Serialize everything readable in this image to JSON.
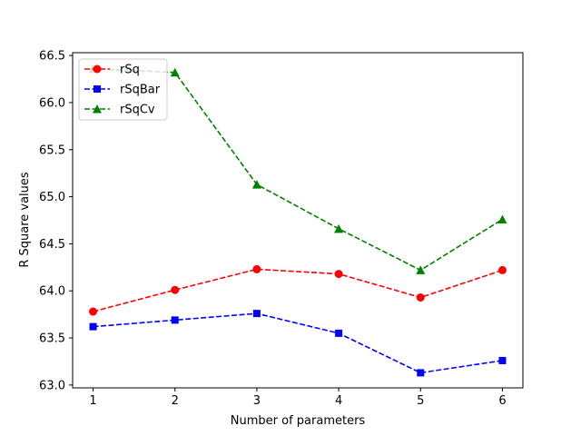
{
  "chart_data": {
    "type": "line",
    "title": "",
    "xlabel": "Number of parameters",
    "ylabel": "R Square values",
    "x": [
      1,
      2,
      3,
      4,
      5,
      6
    ],
    "xticks": [
      "1",
      "2",
      "3",
      "4",
      "5",
      "6"
    ],
    "yticks": [
      "63.0",
      "63.5",
      "64.0",
      "64.5",
      "65.0",
      "65.5",
      "66.0",
      "66.5"
    ],
    "xlim": [
      0.75,
      6.25
    ],
    "ylim": [
      62.97,
      66.53
    ],
    "grid": false,
    "legend_position": "top-left",
    "series": [
      {
        "name": "rSq",
        "values": [
          63.78,
          64.01,
          64.23,
          64.18,
          63.93,
          64.22
        ],
        "color": "#ff0000",
        "marker": "circle",
        "linestyle": "dashed"
      },
      {
        "name": "rSqBar",
        "values": [
          63.62,
          63.69,
          63.76,
          63.55,
          63.13,
          63.26
        ],
        "color": "#0000ff",
        "marker": "square",
        "linestyle": "dashed"
      },
      {
        "name": "rSqCv",
        "values": [
          66.36,
          66.32,
          65.13,
          64.66,
          64.22,
          64.76
        ],
        "color": "#008000",
        "marker": "triangle",
        "linestyle": "dashed"
      }
    ]
  }
}
